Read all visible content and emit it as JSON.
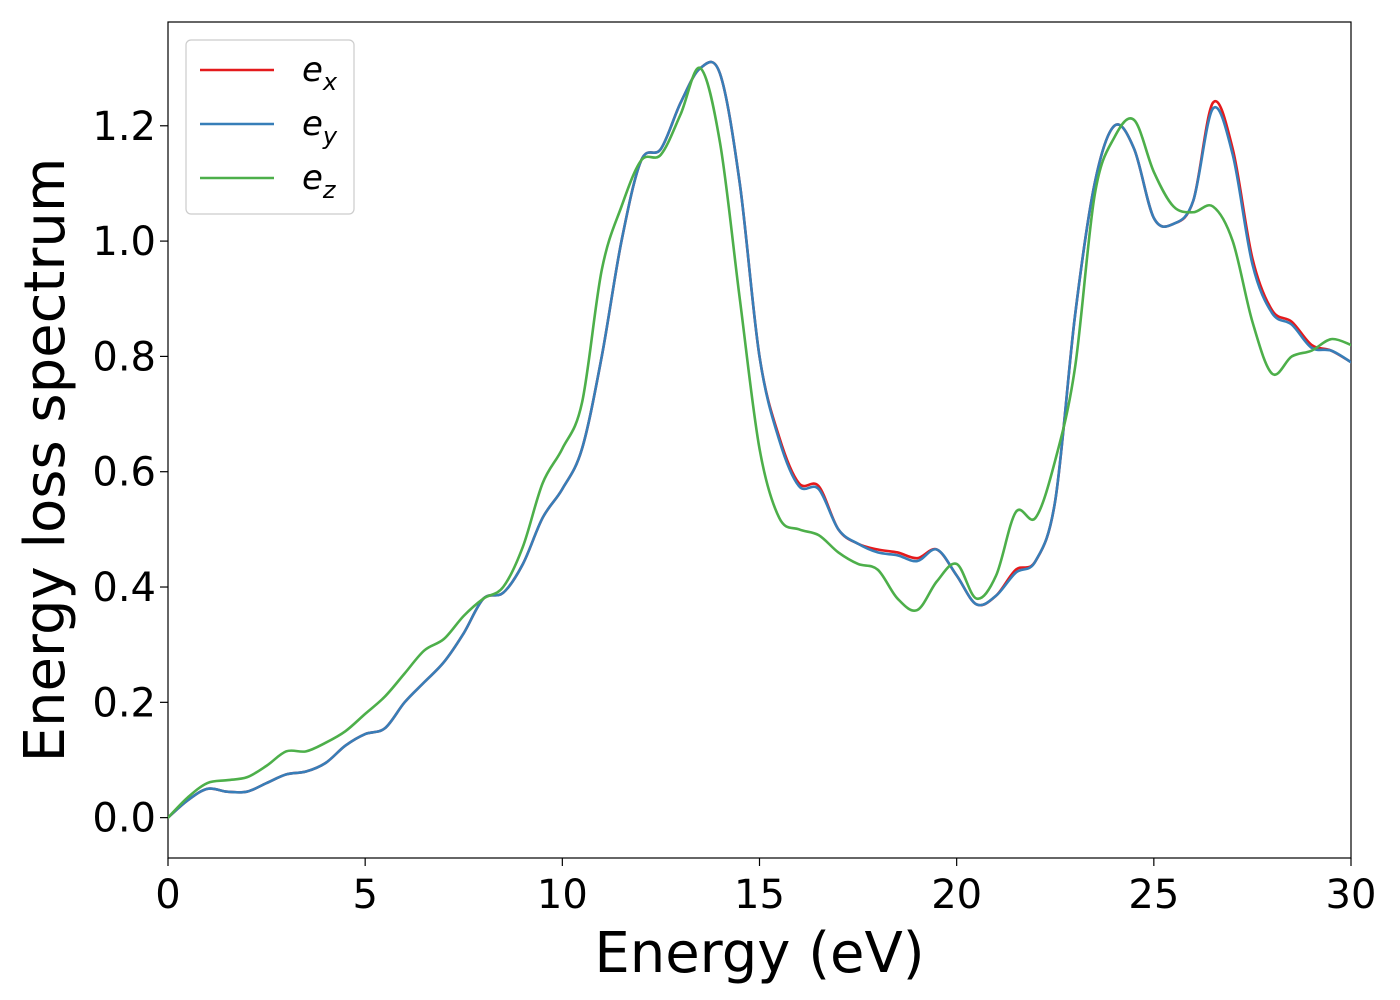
{
  "chart_data": {
    "type": "line",
    "title": "",
    "xlabel": "Energy (eV)",
    "ylabel": "Energy loss spectrum",
    "xlim": [
      0,
      30
    ],
    "ylim": [
      -0.07,
      1.38
    ],
    "xticks": [
      0,
      5,
      10,
      15,
      20,
      25,
      30
    ],
    "xtick_labels": [
      "0",
      "5",
      "10",
      "15",
      "20",
      "25",
      "30"
    ],
    "yticks": [
      0.0,
      0.2,
      0.4,
      0.6,
      0.8,
      1.0,
      1.2
    ],
    "ytick_labels": [
      "0.0",
      "0.2",
      "0.4",
      "0.6",
      "0.8",
      "1.0",
      "1.2"
    ],
    "grid": false,
    "legend_position": "top-left",
    "series": [
      {
        "name": "e_x",
        "legend_base": "e",
        "legend_sub": "x",
        "color": "#e41a1c",
        "x": [
          0,
          0.5,
          1,
          1.5,
          2,
          2.5,
          3,
          3.5,
          4,
          4.5,
          5,
          5.5,
          6,
          6.5,
          7,
          7.5,
          8,
          8.5,
          9,
          9.5,
          10,
          10.5,
          11,
          11.5,
          12,
          12.5,
          13,
          13.5,
          14,
          14.5,
          15,
          15.5,
          16,
          16.5,
          17,
          17.5,
          18,
          18.5,
          19,
          19.5,
          20,
          20.5,
          21,
          21.5,
          22,
          22.5,
          23,
          23.5,
          24,
          24.5,
          25,
          25.5,
          26,
          26.5,
          27,
          27.5,
          28,
          28.5,
          29,
          29.5,
          30
        ],
        "y": [
          0.0,
          0.03,
          0.05,
          0.045,
          0.045,
          0.06,
          0.075,
          0.08,
          0.095,
          0.125,
          0.145,
          0.155,
          0.2,
          0.235,
          0.27,
          0.32,
          0.38,
          0.39,
          0.44,
          0.52,
          0.57,
          0.64,
          0.8,
          1.0,
          1.14,
          1.16,
          1.24,
          1.3,
          1.29,
          1.1,
          0.8,
          0.66,
          0.58,
          0.575,
          0.5,
          0.475,
          0.465,
          0.46,
          0.45,
          0.465,
          0.42,
          0.37,
          0.385,
          0.43,
          0.445,
          0.55,
          0.87,
          1.1,
          1.2,
          1.16,
          1.04,
          1.03,
          1.07,
          1.24,
          1.16,
          0.97,
          0.88,
          0.86,
          0.82,
          0.81,
          0.79
        ]
      },
      {
        "name": "e_y",
        "legend_base": "e",
        "legend_sub": "y",
        "color": "#377eb8",
        "x": [
          0,
          0.5,
          1,
          1.5,
          2,
          2.5,
          3,
          3.5,
          4,
          4.5,
          5,
          5.5,
          6,
          6.5,
          7,
          7.5,
          8,
          8.5,
          9,
          9.5,
          10,
          10.5,
          11,
          11.5,
          12,
          12.5,
          13,
          13.5,
          14,
          14.5,
          15,
          15.5,
          16,
          16.5,
          17,
          17.5,
          18,
          18.5,
          19,
          19.5,
          20,
          20.5,
          21,
          21.5,
          22,
          22.5,
          23,
          23.5,
          24,
          24.5,
          25,
          25.5,
          26,
          26.5,
          27,
          27.5,
          28,
          28.5,
          29,
          29.5,
          30
        ],
        "y": [
          0.0,
          0.03,
          0.05,
          0.045,
          0.045,
          0.06,
          0.075,
          0.08,
          0.095,
          0.125,
          0.145,
          0.155,
          0.2,
          0.235,
          0.27,
          0.32,
          0.38,
          0.39,
          0.44,
          0.52,
          0.57,
          0.64,
          0.8,
          1.0,
          1.14,
          1.16,
          1.24,
          1.3,
          1.29,
          1.1,
          0.8,
          0.655,
          0.575,
          0.57,
          0.5,
          0.475,
          0.46,
          0.455,
          0.445,
          0.465,
          0.42,
          0.37,
          0.385,
          0.425,
          0.445,
          0.55,
          0.87,
          1.1,
          1.2,
          1.16,
          1.04,
          1.03,
          1.07,
          1.23,
          1.15,
          0.96,
          0.875,
          0.855,
          0.815,
          0.81,
          0.79
        ]
      },
      {
        "name": "e_z",
        "legend_base": "e",
        "legend_sub": "z",
        "color": "#4daf4a",
        "x": [
          0,
          0.5,
          1,
          1.5,
          2,
          2.5,
          3,
          3.5,
          4,
          4.5,
          5,
          5.5,
          6,
          6.5,
          7,
          7.5,
          8,
          8.5,
          9,
          9.5,
          10,
          10.5,
          11,
          11.5,
          12,
          12.5,
          13,
          13.5,
          14,
          14.5,
          15,
          15.5,
          16,
          16.5,
          17,
          17.5,
          18,
          18.5,
          19,
          19.5,
          20,
          20.5,
          21,
          21.5,
          22,
          22.5,
          23,
          23.5,
          24,
          24.5,
          25,
          25.5,
          26,
          26.5,
          27,
          27.5,
          28,
          28.5,
          29,
          29.5,
          30
        ],
        "y": [
          0.0,
          0.035,
          0.06,
          0.065,
          0.07,
          0.09,
          0.115,
          0.115,
          0.13,
          0.15,
          0.18,
          0.21,
          0.25,
          0.29,
          0.31,
          0.35,
          0.38,
          0.4,
          0.47,
          0.58,
          0.64,
          0.72,
          0.95,
          1.06,
          1.14,
          1.15,
          1.22,
          1.3,
          1.17,
          0.9,
          0.64,
          0.52,
          0.5,
          0.49,
          0.46,
          0.44,
          0.43,
          0.38,
          0.36,
          0.41,
          0.44,
          0.38,
          0.42,
          0.53,
          0.52,
          0.62,
          0.78,
          1.08,
          1.18,
          1.21,
          1.12,
          1.06,
          1.05,
          1.06,
          1.0,
          0.86,
          0.77,
          0.8,
          0.81,
          0.83,
          0.82
        ]
      }
    ]
  }
}
